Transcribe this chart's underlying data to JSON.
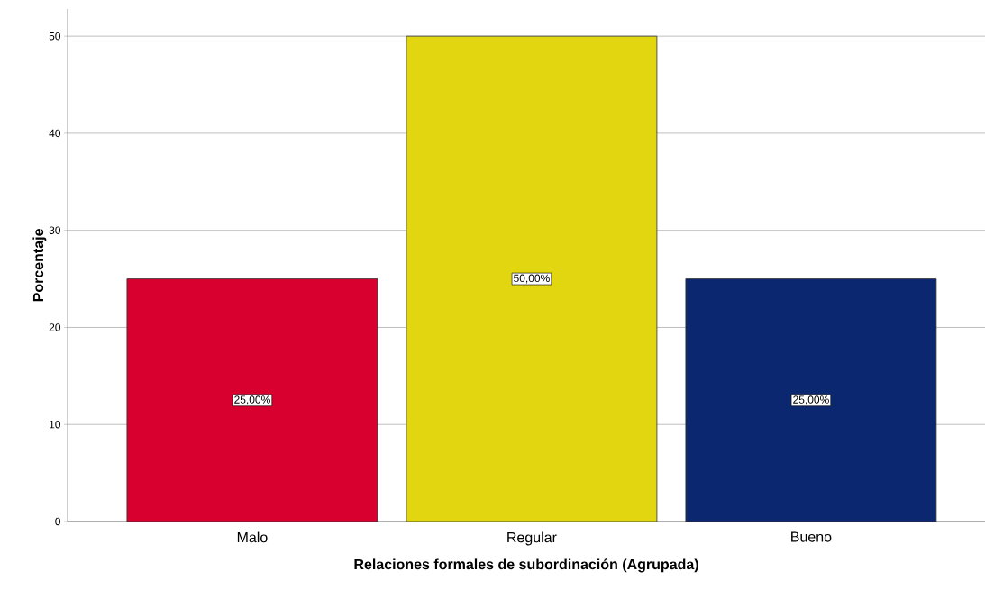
{
  "chart_data": {
    "type": "bar",
    "xlabel": "Relaciones formales de subordinación (Agrupada)",
    "ylabel": "Porcentaje",
    "categories": [
      "Malo",
      "Regular",
      "Bueno"
    ],
    "values": [
      25,
      50,
      25
    ],
    "colors": [
      "#d7002f",
      "#e1d60f",
      "#0b2770"
    ],
    "value_labels": [
      "25,00%",
      "50,00%",
      "25,00%"
    ],
    "ylim": [
      0,
      52.8
    ],
    "yticks": [
      0,
      10,
      20,
      30,
      40,
      50
    ],
    "grid": "y"
  }
}
